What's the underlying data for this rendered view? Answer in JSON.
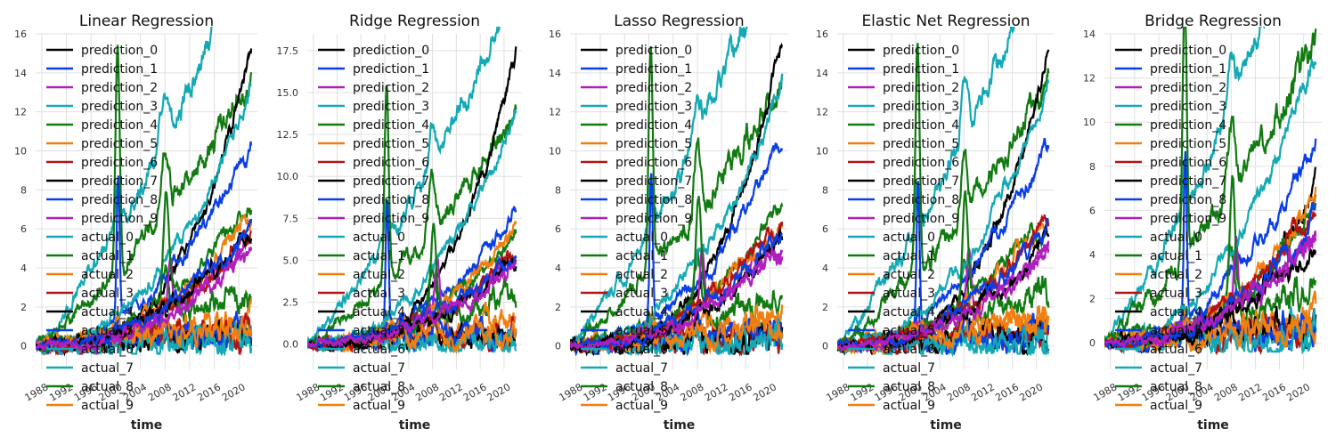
{
  "figure": {
    "background": "#ffffff",
    "grid_color": "#e0e0e0"
  },
  "palette": [
    "#000000",
    "#0a3ee6",
    "#b01fbd",
    "#14a9b4",
    "#117a11",
    "#f07f10",
    "#b21313",
    "#000000",
    "#0a3ee6",
    "#b01fbd",
    "#14a9b4",
    "#117a11",
    "#f07f10",
    "#b21313",
    "#000000",
    "#0a3ee6",
    "#14a9b4",
    "#14a9b4",
    "#117a11",
    "#f07f10"
  ],
  "legend_labels": [
    "prediction_0",
    "prediction_1",
    "prediction_2",
    "prediction_3",
    "prediction_4",
    "prediction_5",
    "prediction_6",
    "prediction_7",
    "prediction_8",
    "prediction_9",
    "actual_0",
    "actual_1",
    "actual_2",
    "actual_3",
    "actual_4",
    "actual_5",
    "actual_6",
    "actual_7",
    "actual_8",
    "actual_9"
  ],
  "chart_data": [
    {
      "type": "line",
      "title": "Linear Regression",
      "xlabel": "time",
      "ylabel": "",
      "xlim": [
        1987,
        2023
      ],
      "ylim": [
        -1.2,
        16
      ],
      "xticks": [
        1988,
        1992,
        1996,
        2000,
        2004,
        2008,
        2012,
        2016,
        2020
      ],
      "yticks": [
        "0",
        "2",
        "4",
        "6",
        "8",
        "10",
        "12",
        "14",
        "16"
      ],
      "ytick_values": [
        0,
        2,
        4,
        6,
        8,
        10,
        12,
        14,
        16
      ],
      "legend": "upper-left",
      "grid": true,
      "prediction_end_values": [
        15.3,
        10.5,
        5.2,
        13.0,
        7.2,
        6.5,
        5.8,
        6.0,
        6.2,
        4.8
      ]
    },
    {
      "type": "line",
      "title": "Ridge Regression",
      "xlabel": "time",
      "ylabel": "",
      "xlim": [
        1987,
        2023
      ],
      "ylim": [
        -1.5,
        18.5
      ],
      "xticks": [
        1988,
        1992,
        1996,
        2000,
        2004,
        2008,
        2012,
        2016,
        2020
      ],
      "yticks": [
        "0.0",
        "2.5",
        "5.0",
        "7.5",
        "10.0",
        "12.5",
        "15.0",
        "17.5"
      ],
      "ytick_values": [
        0,
        2.5,
        5,
        7.5,
        10,
        12.5,
        15,
        17.5
      ],
      "legend": "upper-left",
      "grid": true,
      "prediction_end_values": [
        17.6,
        7.8,
        5.0,
        13.5,
        6.5,
        6.6,
        5.5,
        5.0,
        5.4,
        4.8
      ]
    },
    {
      "type": "line",
      "title": "Lasso Regression",
      "xlabel": "time",
      "ylabel": "",
      "xlim": [
        1987,
        2023
      ],
      "ylim": [
        -1.2,
        16
      ],
      "xticks": [
        1988,
        1992,
        1996,
        2000,
        2004,
        2008,
        2012,
        2016,
        2020
      ],
      "yticks": [
        "0",
        "2",
        "4",
        "6",
        "8",
        "10",
        "12",
        "14",
        "16"
      ],
      "ytick_values": [
        0,
        2,
        4,
        6,
        8,
        10,
        12,
        14,
        16
      ],
      "legend": "upper-left",
      "grid": true,
      "prediction_end_values": [
        15.5,
        10.5,
        5.2,
        13.4,
        7.0,
        6.5,
        6.5,
        5.5,
        6.0,
        4.8
      ]
    },
    {
      "type": "line",
      "title": "Elastic Net Regression",
      "xlabel": "time",
      "ylabel": "",
      "xlim": [
        1987,
        2023
      ],
      "ylim": [
        -1.2,
        16
      ],
      "xticks": [
        1988,
        1992,
        1996,
        2000,
        2004,
        2008,
        2012,
        2016,
        2020
      ],
      "yticks": [
        "0",
        "2",
        "4",
        "6",
        "8",
        "10",
        "12",
        "14",
        "16"
      ],
      "ytick_values": [
        0,
        2,
        4,
        6,
        8,
        10,
        12,
        14,
        16
      ],
      "legend": "upper-left",
      "grid": true,
      "prediction_end_values": [
        15.5,
        10.5,
        5.2,
        13.4,
        7.0,
        6.5,
        6.5,
        5.5,
        6.0,
        4.8
      ]
    },
    {
      "type": "line",
      "title": "Bridge Regression",
      "xlabel": "time",
      "ylabel": "",
      "xlim": [
        1987,
        2023
      ],
      "ylim": [
        -1.2,
        14
      ],
      "xticks": [
        1988,
        1992,
        1996,
        2000,
        2004,
        2008,
        2012,
        2016,
        2020
      ],
      "yticks": [
        "0",
        "2",
        "4",
        "6",
        "8",
        "10",
        "12",
        "14"
      ],
      "ytick_values": [
        0,
        2,
        4,
        6,
        8,
        10,
        12,
        14
      ],
      "legend": "upper-left",
      "grid": true,
      "prediction_end_values": [
        7.3,
        9.3,
        5.0,
        13.4,
        6.0,
        6.5,
        6.2,
        4.3,
        5.5,
        4.8
      ]
    }
  ]
}
